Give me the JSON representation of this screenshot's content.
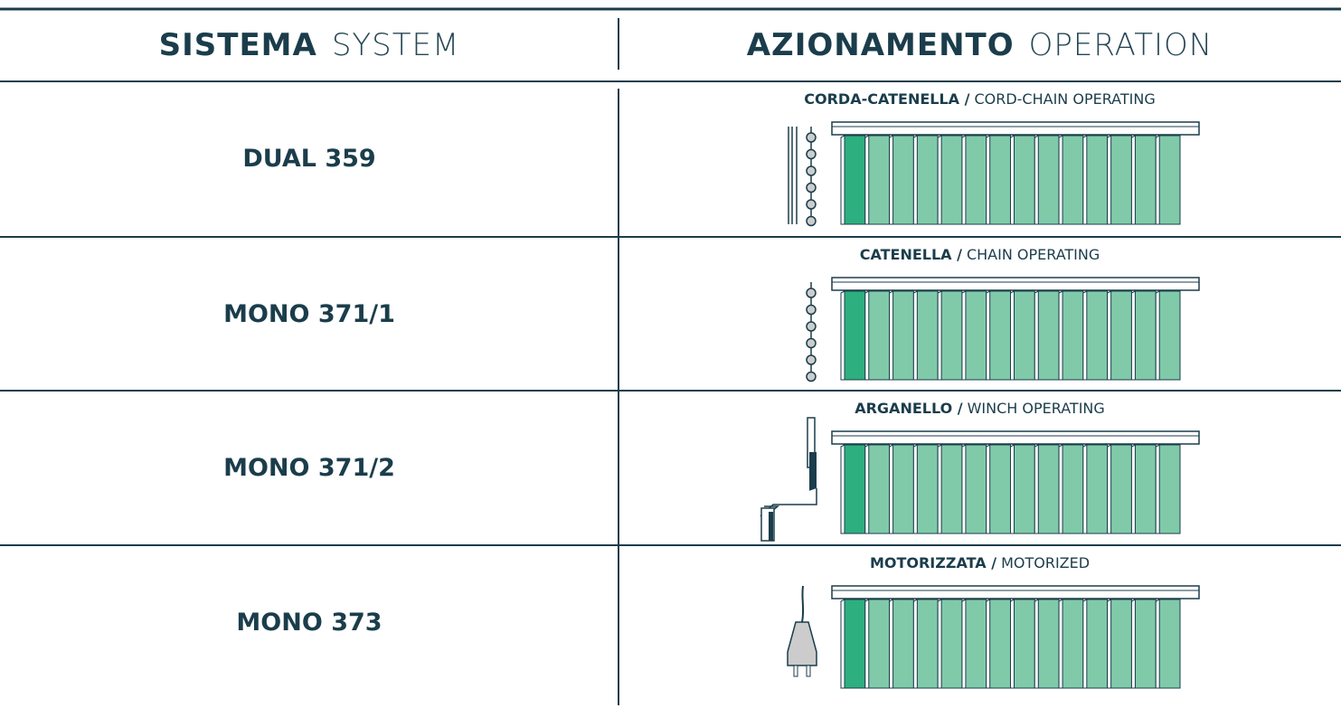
{
  "header": {
    "system": {
      "bold": "SISTEMA",
      "light": "SYSTEM"
    },
    "operation": {
      "bold": "AZIONAMENTO",
      "light": "OPERATION"
    }
  },
  "rows": [
    {
      "system": "DUAL 359",
      "operation": {
        "bold": "CORDA-CATENELLA /",
        "light": "CORD-CHAIN OPERATING"
      }
    },
    {
      "system": "MONO 371/1",
      "operation": {
        "bold": "CATENELLA /",
        "light": "CHAIN OPERATING"
      }
    },
    {
      "system": "MONO 371/2",
      "operation": {
        "bold": "ARGANELLO /",
        "light": "WINCH OPERATING"
      }
    },
    {
      "system": "MONO 373",
      "operation": {
        "bold": "MOTORIZZATA /",
        "light": "MOTORIZED"
      }
    }
  ]
}
